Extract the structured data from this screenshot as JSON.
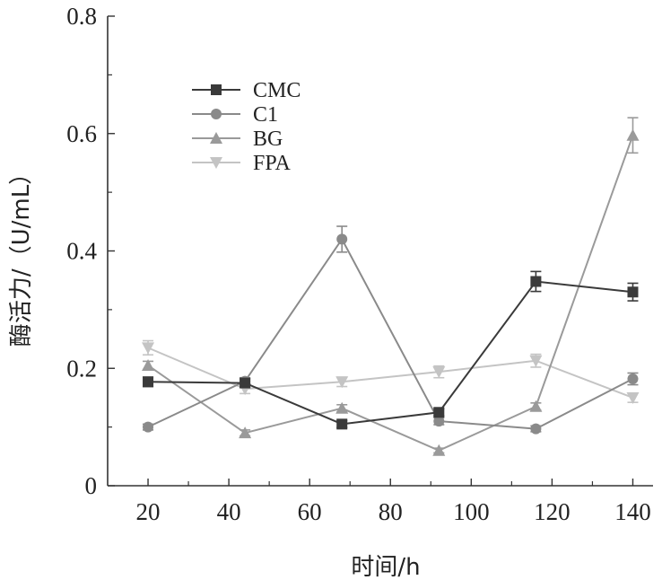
{
  "chart_data": {
    "type": "line",
    "title": "",
    "xlabel": "时间/h",
    "ylabel": "酶活力/（U/mL）",
    "xlim": [
      10,
      145
    ],
    "ylim": [
      0,
      0.8
    ],
    "x": [
      20,
      44,
      68,
      92,
      116,
      140
    ],
    "x_ticks": [
      20,
      40,
      60,
      80,
      100,
      120,
      140
    ],
    "y_ticks": [
      0,
      0.2,
      0.4,
      0.6,
      0.8
    ],
    "y_tick_labels": [
      "0",
      "0.2",
      "0.4",
      "0.6",
      "0.8"
    ],
    "grid": false,
    "legend_position": "top-left",
    "series": [
      {
        "name": "CMC",
        "marker": "square",
        "color": "#3a3a3a",
        "values": [
          0.177,
          0.175,
          0.105,
          0.125,
          0.348,
          0.33
        ],
        "errors": [
          0.008,
          0.007,
          0.006,
          0.006,
          0.017,
          0.015
        ]
      },
      {
        "name": "C1",
        "marker": "circle",
        "color": "#8a8a8a",
        "values": [
          0.1,
          0.178,
          0.42,
          0.11,
          0.097,
          0.182
        ],
        "errors": [
          0.005,
          0.006,
          0.022,
          0.006,
          0.005,
          0.01
        ]
      },
      {
        "name": "BG",
        "marker": "triangle-up",
        "color": "#9a9a9a",
        "values": [
          0.205,
          0.09,
          0.132,
          0.06,
          0.135,
          0.597
        ],
        "errors": [
          0.007,
          0.005,
          0.006,
          0.004,
          0.006,
          0.03
        ]
      },
      {
        "name": "FPA",
        "marker": "triangle-down",
        "color": "#c4c4c4",
        "values": [
          0.235,
          0.165,
          0.177,
          0.194,
          0.213,
          0.15
        ],
        "errors": [
          0.012,
          0.008,
          0.008,
          0.01,
          0.011,
          0.008
        ]
      }
    ]
  }
}
